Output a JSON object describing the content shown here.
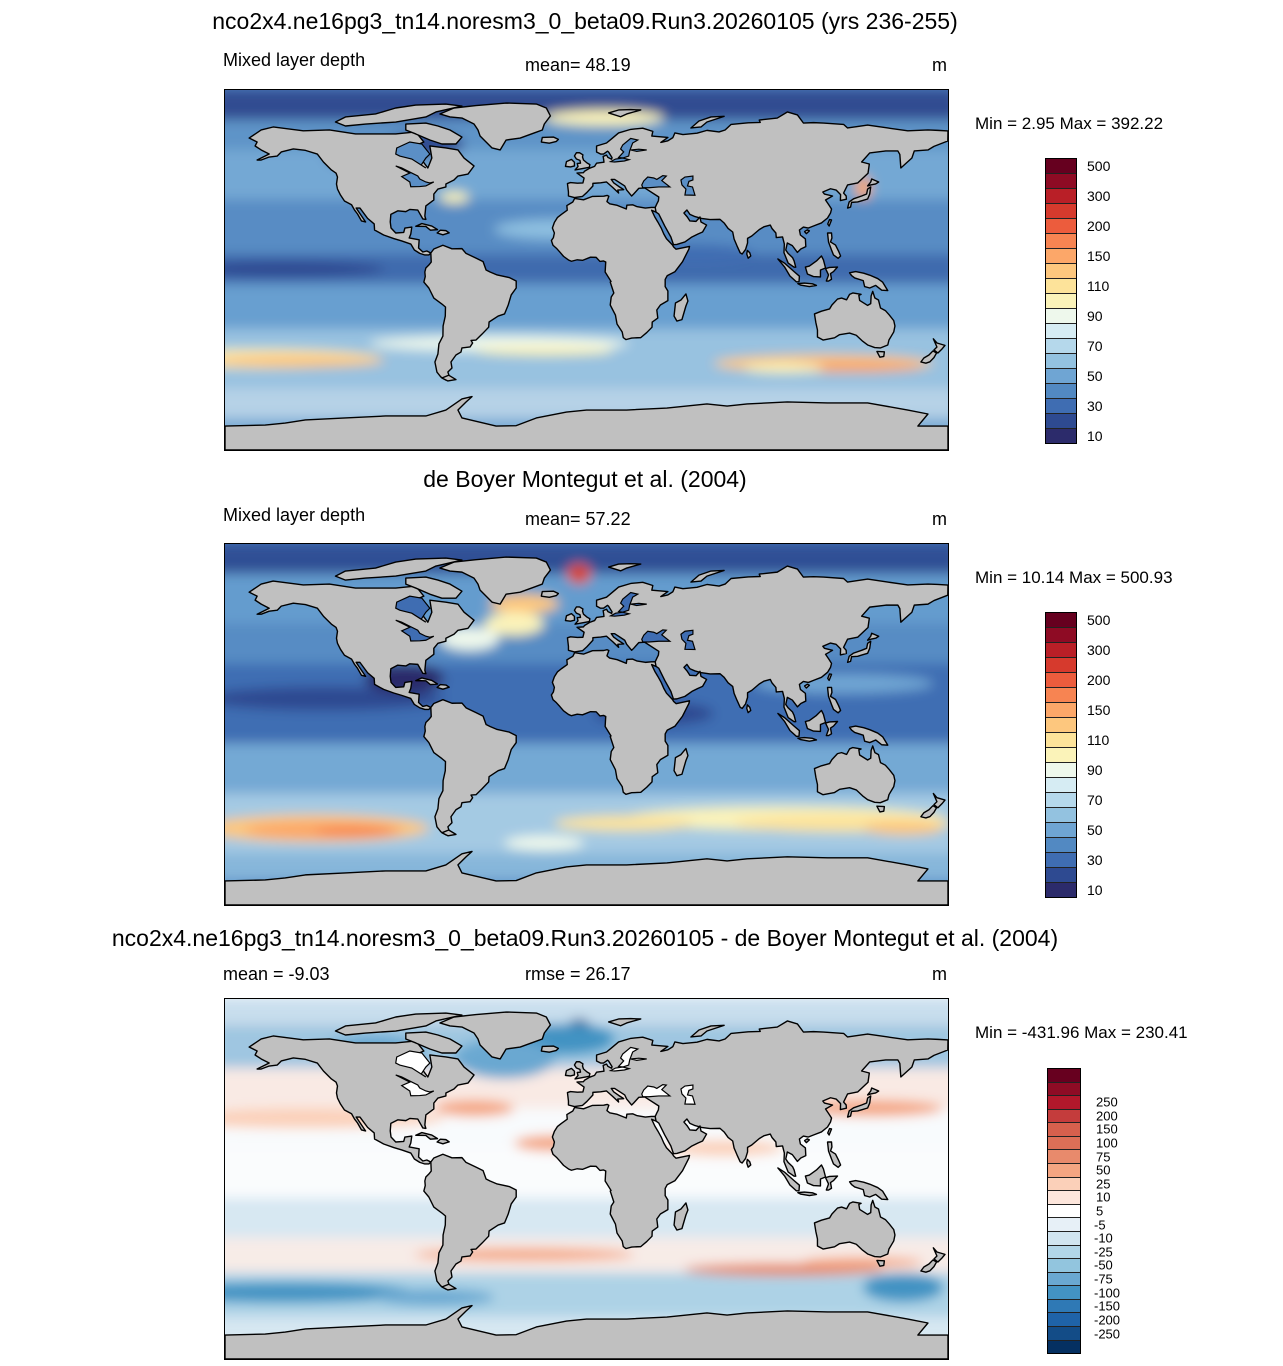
{
  "panels": [
    {
      "title": "nco2x4.ne16pg3_tn14.noresm3_0_beta09.Run3.20260105 (yrs 236-255)",
      "left_label": "Mixed layer depth",
      "center_label": "mean=  48.19",
      "units": "m",
      "minmax": "Min =   2.95 Max = 392.22",
      "colorbar": {
        "colors": [
          "#2c2b6b",
          "#2e4a91",
          "#3f6db2",
          "#5289c2",
          "#6fa5d3",
          "#93c2e0",
          "#b5d8eb",
          "#d6ecf3",
          "#eef8ec",
          "#fbf3b9",
          "#fde39a",
          "#fdc77e",
          "#fca769",
          "#f78452",
          "#ec5c3d",
          "#d63a2d",
          "#b91f27",
          "#8e0b24",
          "#66001f"
        ],
        "labels": [
          "10",
          "30",
          "50",
          "70",
          "90",
          "110",
          "150",
          "200",
          "300",
          "500"
        ]
      }
    },
    {
      "title": "de Boyer Montegut et al. (2004)",
      "left_label": "Mixed layer depth",
      "center_label": "mean=  57.22",
      "units": "m",
      "minmax": "Min =  10.14 Max = 500.93",
      "colorbar": {
        "colors": [
          "#2c2b6b",
          "#2e4a91",
          "#3f6db2",
          "#5289c2",
          "#6fa5d3",
          "#93c2e0",
          "#b5d8eb",
          "#d6ecf3",
          "#eef8ec",
          "#fbf3b9",
          "#fde39a",
          "#fdc77e",
          "#fca769",
          "#f78452",
          "#ec5c3d",
          "#d63a2d",
          "#b91f27",
          "#8e0b24",
          "#66001f"
        ],
        "labels": [
          "10",
          "30",
          "50",
          "70",
          "90",
          "110",
          "150",
          "200",
          "300",
          "500"
        ]
      }
    },
    {
      "title": "nco2x4.ne16pg3_tn14.noresm3_0_beta09.Run3.20260105 - de Boyer Montegut et al. (2004)",
      "left_label": "mean =  -9.03",
      "center_label": "rmse =  26.17",
      "units": "m",
      "minmax": "Min = -431.96 Max = 230.41",
      "colorbar": {
        "colors": [
          "#053061",
          "#134c87",
          "#1f63a8",
          "#2f79b5",
          "#4393c3",
          "#6aa8d1",
          "#92c5de",
          "#b2d6e8",
          "#d1e5f0",
          "#e7f0f7",
          "#ffffff",
          "#fde6dc",
          "#fbd0b9",
          "#f4a582",
          "#e88a6c",
          "#dc6f57",
          "#d6604d",
          "#c43c3c",
          "#b2182b",
          "#8e0c25",
          "#67001f"
        ],
        "labels": [
          "-250",
          "-200",
          "-150",
          "-100",
          "-75",
          "-50",
          "-25",
          "-10",
          "-5",
          "5",
          "10",
          "25",
          "50",
          "75",
          "100",
          "150",
          "200",
          "250"
        ]
      }
    }
  ],
  "colors": {
    "land": "#c0c0c0",
    "coastline": "#000000"
  }
}
